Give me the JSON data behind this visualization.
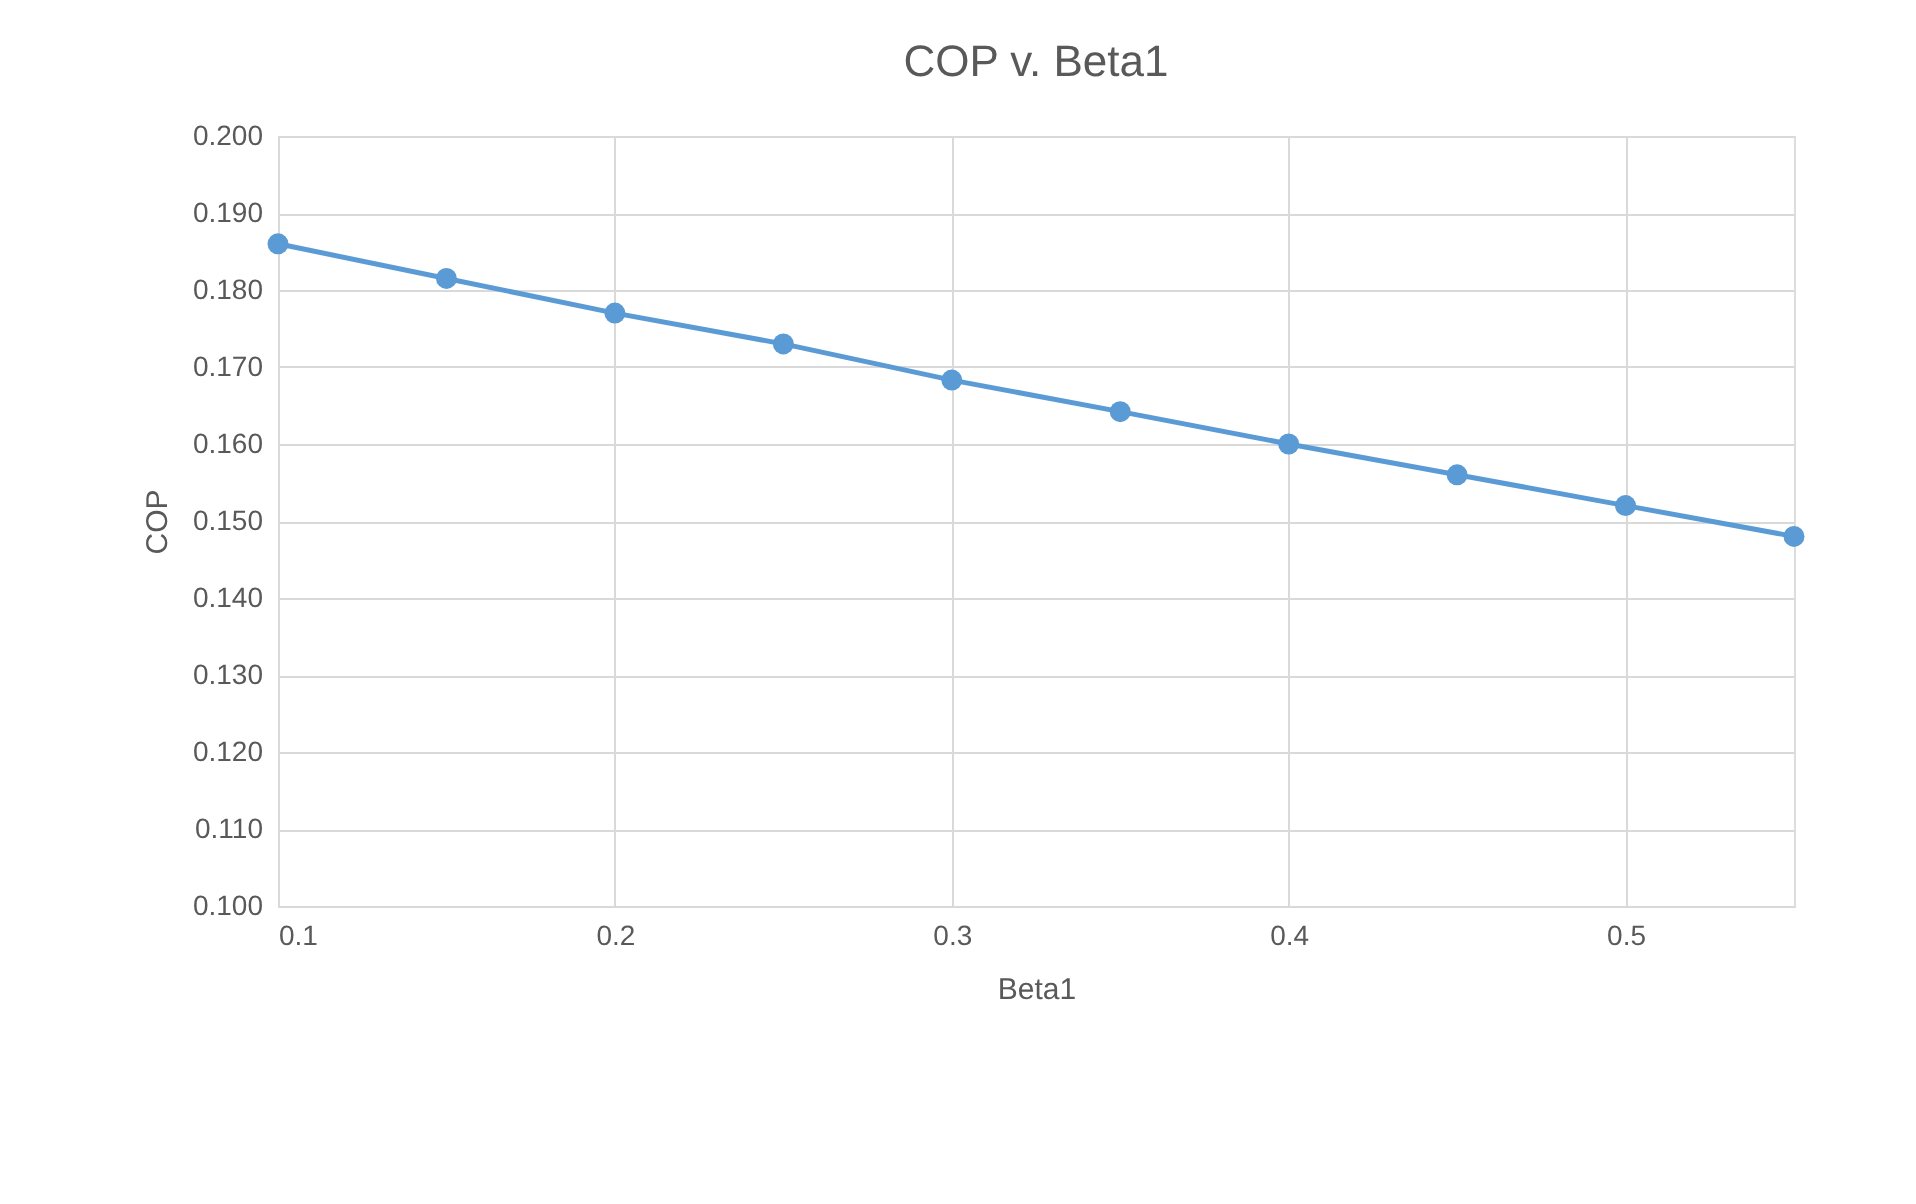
{
  "chart_data": {
    "type": "line",
    "title": "COP v. Beta1",
    "xlabel": "Beta1",
    "ylabel": "COP",
    "x": [
      0.1,
      0.15,
      0.2,
      0.25,
      0.3,
      0.35,
      0.4,
      0.45,
      0.5,
      0.55
    ],
    "series": [
      {
        "color": "#5b9bd5",
        "values": [
          0.186,
          0.1815,
          0.177,
          0.173,
          0.1683,
          0.1642,
          0.16,
          0.156,
          0.152,
          0.148
        ]
      }
    ],
    "xlim": [
      0.1,
      0.55
    ],
    "xticks": [
      0.1,
      0.2,
      0.3,
      0.4,
      0.5
    ],
    "ylim": [
      0.1,
      0.2
    ],
    "yticks": [
      {
        "value": 0.1,
        "label": "0.100"
      },
      {
        "value": 0.11,
        "label": "0.110"
      },
      {
        "value": 0.12,
        "label": "0.120"
      },
      {
        "value": 0.13,
        "label": "0.130"
      },
      {
        "value": 0.14,
        "label": "0.140"
      },
      {
        "value": 0.15,
        "label": "0.150"
      },
      {
        "value": 0.16,
        "label": "0.160"
      },
      {
        "value": 0.17,
        "label": "0.170"
      },
      {
        "value": 0.18,
        "label": "0.180"
      },
      {
        "value": 0.19,
        "label": "0.190"
      },
      {
        "value": 0.2,
        "label": "0.200"
      }
    ],
    "grid": true,
    "marker": "circle",
    "line_style": "solid"
  }
}
